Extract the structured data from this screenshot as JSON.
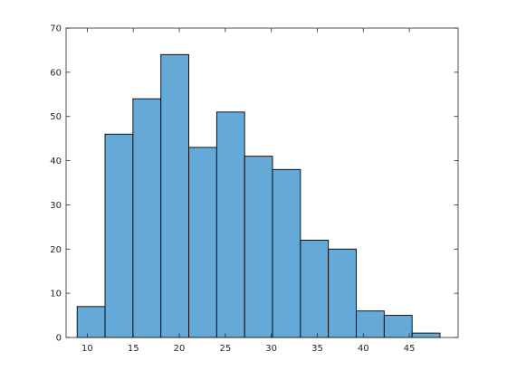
{
  "chart_data": {
    "type": "bar",
    "histogram": true,
    "bins": [
      {
        "x0": 8.9,
        "x1": 11.933,
        "count": 7
      },
      {
        "x0": 11.933,
        "x1": 14.967,
        "count": 46
      },
      {
        "x0": 14.967,
        "x1": 18.0,
        "count": 54
      },
      {
        "x0": 18.0,
        "x1": 21.033,
        "count": 64
      },
      {
        "x0": 21.033,
        "x1": 24.067,
        "count": 43
      },
      {
        "x0": 24.067,
        "x1": 27.1,
        "count": 51
      },
      {
        "x0": 27.1,
        "x1": 30.133,
        "count": 41
      },
      {
        "x0": 30.133,
        "x1": 33.167,
        "count": 38
      },
      {
        "x0": 33.167,
        "x1": 36.2,
        "count": 22
      },
      {
        "x0": 36.2,
        "x1": 39.233,
        "count": 20
      },
      {
        "x0": 39.233,
        "x1": 42.267,
        "count": 6
      },
      {
        "x0": 42.267,
        "x1": 45.3,
        "count": 5
      },
      {
        "x0": 45.3,
        "x1": 48.333,
        "count": 1
      }
    ],
    "xlim": [
      7.7,
      50.3
    ],
    "ylim": [
      0,
      70
    ],
    "xticks": [
      10,
      15,
      20,
      25,
      30,
      35,
      40,
      45
    ],
    "yticks": [
      0,
      10,
      20,
      30,
      40,
      50,
      60,
      70
    ],
    "bar_color": "#64a9d8",
    "edge_color": "#000000",
    "grid": false,
    "title": "",
    "xlabel": "",
    "ylabel": ""
  }
}
